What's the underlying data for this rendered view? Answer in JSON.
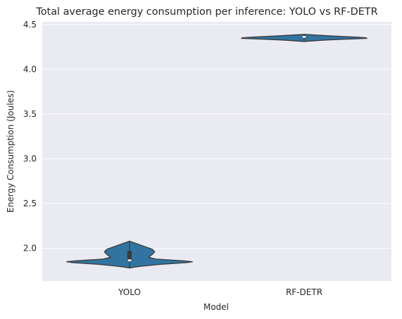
{
  "chart_data": {
    "type": "violin",
    "title": "Total average energy consumption per inference: YOLO vs RF-DETR",
    "xlabel": "Model",
    "ylabel": "Energy Consumption (Joules)",
    "categories": [
      "YOLO",
      "RF-DETR"
    ],
    "ylim": [
      1.635,
      4.53
    ],
    "yticks": [
      2.0,
      2.5,
      3.0,
      3.5,
      4.0,
      4.5
    ],
    "ytick_labels": [
      "2.0",
      "2.5",
      "3.0",
      "3.5",
      "4.0",
      "4.5"
    ],
    "grid": true,
    "violins": [
      {
        "name": "YOLO",
        "min": 1.78,
        "q1": 1.85,
        "median": 1.865,
        "q3": 1.97,
        "max": 2.08,
        "profile": [
          [
            1.78,
            0.0
          ],
          [
            1.79,
            0.08
          ],
          [
            1.8,
            0.2
          ],
          [
            1.82,
            0.48
          ],
          [
            1.84,
            0.9
          ],
          [
            1.85,
            1.0
          ],
          [
            1.86,
            0.86
          ],
          [
            1.88,
            0.42
          ],
          [
            1.9,
            0.3
          ],
          [
            1.93,
            0.36
          ],
          [
            1.96,
            0.4
          ],
          [
            1.99,
            0.36
          ],
          [
            2.02,
            0.24
          ],
          [
            2.05,
            0.12
          ],
          [
            2.08,
            0.0
          ]
        ]
      },
      {
        "name": "RF-DETR",
        "min": 4.31,
        "q1": 4.345,
        "median": 4.362,
        "q3": 4.375,
        "max": 4.39,
        "profile": [
          [
            4.31,
            0.0
          ],
          [
            4.325,
            0.3
          ],
          [
            4.335,
            0.6
          ],
          [
            4.345,
            1.0
          ],
          [
            4.352,
            0.98
          ],
          [
            4.36,
            0.82
          ],
          [
            4.37,
            0.52
          ],
          [
            4.38,
            0.24
          ],
          [
            4.39,
            0.0
          ]
        ]
      }
    ],
    "colors": {
      "violin_fill": "#3274a1",
      "violin_edge": "#3b3b3b",
      "box": "#3b3b3b",
      "median": "#ffffff",
      "plot_bg": "#eaeaf2",
      "grid": "#ffffff"
    }
  }
}
